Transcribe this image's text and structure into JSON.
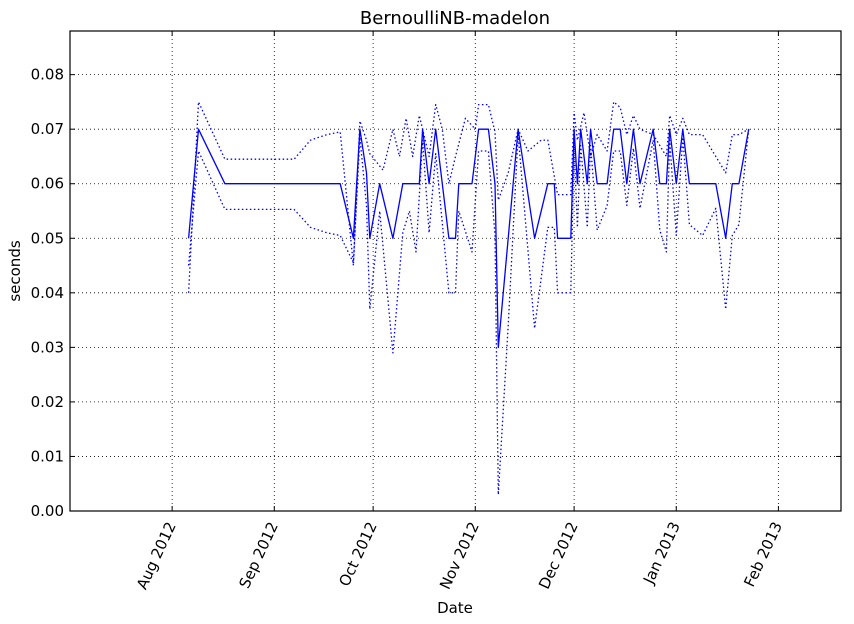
{
  "chart_data": {
    "type": "line",
    "title": "BernoulliNB-madelon",
    "xlabel": "Date",
    "ylabel": "seconds",
    "x_axis": "date",
    "xlim": [
      "2012-07-01",
      "2013-02-20"
    ],
    "ylim": [
      0,
      0.088
    ],
    "grid": true,
    "xticks": [
      {
        "date": "2012-08-01",
        "label": "Aug 2012"
      },
      {
        "date": "2012-09-01",
        "label": "Sep 2012"
      },
      {
        "date": "2012-10-01",
        "label": "Oct 2012"
      },
      {
        "date": "2012-11-01",
        "label": "Nov 2012"
      },
      {
        "date": "2012-12-01",
        "label": "Dec 2012"
      },
      {
        "date": "2013-01-01",
        "label": "Jan 2013"
      },
      {
        "date": "2013-02-01",
        "label": "Feb 2013"
      }
    ],
    "yticks": [
      {
        "value": 0.0,
        "label": "0.00"
      },
      {
        "value": 0.01,
        "label": "0.01"
      },
      {
        "value": 0.02,
        "label": "0.02"
      },
      {
        "value": 0.03,
        "label": "0.03"
      },
      {
        "value": 0.04,
        "label": "0.04"
      },
      {
        "value": 0.05,
        "label": "0.05"
      },
      {
        "value": 0.06,
        "label": "0.06"
      },
      {
        "value": 0.07,
        "label": "0.07"
      },
      {
        "value": 0.08,
        "label": "0.08"
      }
    ],
    "series": [
      {
        "style": "solid",
        "color": "#0000ff",
        "points": [
          [
            "2012-08-06",
            0.05
          ],
          [
            "2012-08-09",
            0.07
          ],
          [
            "2012-08-17",
            0.06
          ],
          [
            "2012-08-26",
            0.06
          ],
          [
            "2012-09-08",
            0.06
          ],
          [
            "2012-09-13",
            0.06
          ],
          [
            "2012-09-14",
            0.06
          ],
          [
            "2012-09-13",
            0.06
          ],
          [
            "2012-09-21",
            0.06
          ],
          [
            "2012-09-25",
            0.05
          ],
          [
            "2012-09-27",
            0.07
          ],
          [
            "2012-09-29",
            0.062
          ],
          [
            "2012-09-30",
            0.05
          ],
          [
            "2012-10-03",
            0.06
          ],
          [
            "2012-10-07",
            0.05
          ],
          [
            "2012-10-10",
            0.06
          ],
          [
            "2012-10-13",
            0.06
          ],
          [
            "2012-10-15",
            0.06
          ],
          [
            "2012-10-16",
            0.07
          ],
          [
            "2012-10-18",
            0.06
          ],
          [
            "2012-10-20",
            0.07
          ],
          [
            "2012-10-24",
            0.05
          ],
          [
            "2012-10-26",
            0.05
          ],
          [
            "2012-10-27",
            0.06
          ],
          [
            "2012-10-31",
            0.06
          ],
          [
            "2012-11-02",
            0.07
          ],
          [
            "2012-11-05",
            0.07
          ],
          [
            "2012-11-07",
            0.06
          ],
          [
            "2012-11-08",
            0.03
          ],
          [
            "2012-11-11",
            0.05
          ],
          [
            "2012-11-14",
            0.07
          ],
          [
            "2012-11-19",
            0.05
          ],
          [
            "2012-11-23",
            0.06
          ],
          [
            "2012-11-25",
            0.06
          ],
          [
            "2012-11-26",
            0.05
          ],
          [
            "2012-11-30",
            0.05
          ],
          [
            "2012-12-01",
            0.07
          ],
          [
            "2012-12-02",
            0.06
          ],
          [
            "2012-12-03",
            0.07
          ],
          [
            "2012-12-05",
            0.06
          ],
          [
            "2012-12-06",
            0.07
          ],
          [
            "2012-12-08",
            0.06
          ],
          [
            "2012-12-11",
            0.06
          ],
          [
            "2012-12-13",
            0.07
          ],
          [
            "2012-12-15",
            0.07
          ],
          [
            "2012-12-17",
            0.06
          ],
          [
            "2012-12-19",
            0.07
          ],
          [
            "2012-12-21",
            0.06
          ],
          [
            "2012-12-25",
            0.07
          ],
          [
            "2012-12-27",
            0.06
          ],
          [
            "2012-12-29",
            0.06
          ],
          [
            "2012-12-30",
            0.07
          ],
          [
            "2013-01-01",
            0.06
          ],
          [
            "2013-01-03",
            0.07
          ],
          [
            "2013-01-05",
            0.06
          ],
          [
            "2013-01-09",
            0.06
          ],
          [
            "2013-01-13",
            0.06
          ],
          [
            "2013-01-16",
            0.05
          ],
          [
            "2013-01-18",
            0.06
          ],
          [
            "2013-01-20",
            0.06
          ],
          [
            "2013-01-23",
            0.07
          ]
        ]
      },
      {
        "style": "dotted",
        "color": "#0000ff",
        "points": [
          [
            "2012-08-06",
            0.04
          ],
          [
            "2012-08-09",
            0.075
          ],
          [
            "2012-08-17",
            0.0645
          ],
          [
            "2012-08-26",
            0.0645
          ],
          [
            "2012-09-07",
            0.0645
          ],
          [
            "2012-09-12",
            0.068
          ],
          [
            "2012-09-17",
            0.069
          ],
          [
            "2012-09-21",
            0.0695
          ],
          [
            "2012-09-25",
            0.045
          ],
          [
            "2012-09-27",
            0.0715
          ],
          [
            "2012-09-29",
            0.068
          ],
          [
            "2012-09-30",
            0.0655
          ],
          [
            "2012-10-04",
            0.0625
          ],
          [
            "2012-10-07",
            0.07
          ],
          [
            "2012-10-09",
            0.065
          ],
          [
            "2012-10-11",
            0.072
          ],
          [
            "2012-10-13",
            0.065
          ],
          [
            "2012-10-15",
            0.0725
          ],
          [
            "2012-10-16",
            0.07
          ],
          [
            "2012-10-18",
            0.065
          ],
          [
            "2012-10-20",
            0.0745
          ],
          [
            "2012-10-22",
            0.07
          ],
          [
            "2012-10-24",
            0.06
          ],
          [
            "2012-10-26",
            0.065
          ],
          [
            "2012-10-29",
            0.072
          ],
          [
            "2012-11-01",
            0.07
          ],
          [
            "2012-11-02",
            0.0745
          ],
          [
            "2012-11-05",
            0.0745
          ],
          [
            "2012-11-07",
            0.0695
          ],
          [
            "2012-11-08",
            0.057
          ],
          [
            "2012-11-11",
            0.062
          ],
          [
            "2012-11-14",
            0.07
          ],
          [
            "2012-11-17",
            0.066
          ],
          [
            "2012-11-21",
            0.068
          ],
          [
            "2012-11-23",
            0.068
          ],
          [
            "2012-11-26",
            0.058
          ],
          [
            "2012-11-30",
            0.058
          ],
          [
            "2012-12-01",
            0.073
          ],
          [
            "2012-12-02",
            0.068
          ],
          [
            "2012-12-04",
            0.073
          ],
          [
            "2012-12-06",
            0.065
          ],
          [
            "2012-12-08",
            0.069
          ],
          [
            "2012-12-11",
            0.066
          ],
          [
            "2012-12-13",
            0.075
          ],
          [
            "2012-12-15",
            0.074
          ],
          [
            "2012-12-17",
            0.069
          ],
          [
            "2012-12-19",
            0.0725
          ],
          [
            "2012-12-21",
            0.07
          ],
          [
            "2012-12-25",
            0.069
          ],
          [
            "2012-12-27",
            0.067
          ],
          [
            "2012-12-29",
            0.065
          ],
          [
            "2012-12-30",
            0.0725
          ],
          [
            "2013-01-01",
            0.069
          ],
          [
            "2013-01-03",
            0.072
          ],
          [
            "2013-01-05",
            0.069
          ],
          [
            "2013-01-09",
            0.069
          ],
          [
            "2013-01-13",
            0.065
          ],
          [
            "2013-01-16",
            0.062
          ],
          [
            "2013-01-18",
            0.069
          ],
          [
            "2013-01-20",
            0.069
          ],
          [
            "2013-01-23",
            0.07
          ]
        ]
      },
      {
        "style": "dotted",
        "color": "#0000ff",
        "points": [
          [
            "2012-08-06",
            0.045
          ],
          [
            "2012-08-09",
            0.066
          ],
          [
            "2012-08-17",
            0.0553
          ],
          [
            "2012-08-26",
            0.0553
          ],
          [
            "2012-09-07",
            0.0553
          ],
          [
            "2012-09-12",
            0.052
          ],
          [
            "2012-09-17",
            0.051
          ],
          [
            "2012-09-21",
            0.0505
          ],
          [
            "2012-09-25",
            0.0455
          ],
          [
            "2012-09-27",
            0.0685
          ],
          [
            "2012-09-29",
            0.056
          ],
          [
            "2012-09-30",
            0.037
          ],
          [
            "2012-10-03",
            0.055
          ],
          [
            "2012-10-07",
            0.029
          ],
          [
            "2012-10-10",
            0.051
          ],
          [
            "2012-10-12",
            0.055
          ],
          [
            "2012-10-14",
            0.0475
          ],
          [
            "2012-10-16",
            0.068
          ],
          [
            "2012-10-18",
            0.051
          ],
          [
            "2012-10-20",
            0.0655
          ],
          [
            "2012-10-24",
            0.04
          ],
          [
            "2012-10-26",
            0.04
          ],
          [
            "2012-10-27",
            0.055
          ],
          [
            "2012-10-31",
            0.0475
          ],
          [
            "2012-11-02",
            0.066
          ],
          [
            "2012-11-05",
            0.066
          ],
          [
            "2012-11-07",
            0.0505
          ],
          [
            "2012-11-08",
            0.003
          ],
          [
            "2012-11-11",
            0.034
          ],
          [
            "2012-11-14",
            0.069
          ],
          [
            "2012-11-19",
            0.0335
          ],
          [
            "2012-11-23",
            0.052
          ],
          [
            "2012-11-25",
            0.052
          ],
          [
            "2012-11-26",
            0.04
          ],
          [
            "2012-11-30",
            0.04
          ],
          [
            "2012-12-01",
            0.067
          ],
          [
            "2012-12-02",
            0.052
          ],
          [
            "2012-12-03",
            0.067
          ],
          [
            "2012-12-05",
            0.052
          ],
          [
            "2012-12-06",
            0.067
          ],
          [
            "2012-12-08",
            0.0515
          ],
          [
            "2012-12-11",
            0.056
          ],
          [
            "2012-12-13",
            0.066
          ],
          [
            "2012-12-15",
            0.066
          ],
          [
            "2012-12-17",
            0.056
          ],
          [
            "2012-12-19",
            0.0665
          ],
          [
            "2012-12-21",
            0.0555
          ],
          [
            "2012-12-25",
            0.068
          ],
          [
            "2012-12-27",
            0.0515
          ],
          [
            "2012-12-29",
            0.0475
          ],
          [
            "2012-12-30",
            0.068
          ],
          [
            "2013-01-01",
            0.0505
          ],
          [
            "2013-01-03",
            0.0685
          ],
          [
            "2013-01-05",
            0.0525
          ],
          [
            "2013-01-09",
            0.0505
          ],
          [
            "2013-01-13",
            0.0555
          ],
          [
            "2013-01-16",
            0.037
          ],
          [
            "2013-01-18",
            0.0505
          ],
          [
            "2013-01-20",
            0.0525
          ],
          [
            "2013-01-23",
            0.07
          ]
        ]
      }
    ]
  }
}
